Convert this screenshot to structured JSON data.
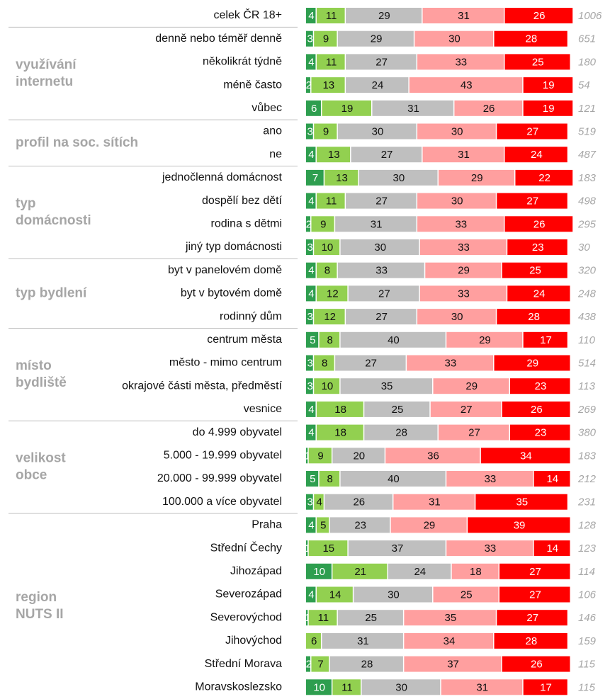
{
  "chart_data": {
    "type": "bar",
    "orientation": "horizontal",
    "stacked": true,
    "groups": [
      {
        "label": [],
        "categories": [
          "celek ČR 18+"
        ]
      },
      {
        "label": [
          "využívání",
          "internetu"
        ],
        "categories": [
          "denně nebo téměř denně",
          "několikrát týdně",
          "méně často",
          "vůbec"
        ]
      },
      {
        "label": [
          "profil na soc. sítích"
        ],
        "categories": [
          "ano",
          "ne"
        ]
      },
      {
        "label": [
          "typ",
          "domácnosti"
        ],
        "categories": [
          "jednočlenná domácnost",
          "dospělí bez dětí",
          "rodina s dětmi",
          "jiný typ domácnosti"
        ]
      },
      {
        "label": [
          "typ bydlení"
        ],
        "categories": [
          "byt v panelovém domě",
          "byt v bytovém domě",
          "rodinný dům"
        ]
      },
      {
        "label": [
          "místo",
          "bydliště"
        ],
        "categories": [
          "centrum města",
          "město - mimo centrum",
          "okrajové části města, předměstí",
          "vesnice"
        ]
      },
      {
        "label": [
          "velikost",
          "obce"
        ],
        "categories": [
          "do 4.999 obyvatel",
          "5.000 - 19.999 obyvatel",
          "20.000 - 99.999 obyvatel",
          "100.000 a více obyvatel"
        ]
      },
      {
        "label": [
          "region",
          "NUTS II"
        ],
        "categories": [
          "Praha",
          "Střední Čechy",
          "Jihozápad",
          "Severozápad",
          "Severovýchod",
          "Jihovýchod",
          "Střední Morava",
          "Moravskoslezsko"
        ]
      }
    ],
    "series": [
      {
        "color": "#2e9e4f",
        "values": [
          4,
          3,
          4,
          2,
          6,
          3,
          4,
          7,
          4,
          2,
          3,
          4,
          4,
          3,
          5,
          3,
          3,
          4,
          4,
          1,
          5,
          3,
          4,
          1,
          10,
          4,
          1,
          0,
          2,
          10
        ]
      },
      {
        "color": "#92d050",
        "values": [
          11,
          9,
          11,
          13,
          19,
          9,
          13,
          13,
          11,
          9,
          10,
          8,
          12,
          12,
          8,
          8,
          10,
          18,
          18,
          9,
          8,
          4,
          5,
          15,
          21,
          14,
          11,
          6,
          7,
          11
        ]
      },
      {
        "color": "#bfbfbf",
        "values": [
          29,
          29,
          27,
          24,
          31,
          30,
          27,
          30,
          27,
          31,
          30,
          33,
          27,
          27,
          40,
          27,
          35,
          25,
          28,
          20,
          40,
          26,
          23,
          37,
          24,
          30,
          25,
          31,
          28,
          30
        ]
      },
      {
        "color": "#ff9f9f",
        "values": [
          31,
          30,
          33,
          43,
          26,
          30,
          31,
          29,
          30,
          33,
          33,
          29,
          33,
          30,
          29,
          33,
          29,
          27,
          27,
          36,
          33,
          31,
          29,
          33,
          18,
          25,
          35,
          34,
          37,
          31
        ]
      },
      {
        "color": "#ff0000",
        "values": [
          26,
          28,
          25,
          19,
          19,
          27,
          24,
          22,
          27,
          26,
          23,
          25,
          24,
          28,
          17,
          29,
          23,
          26,
          23,
          34,
          14,
          35,
          39,
          14,
          27,
          27,
          27,
          28,
          26,
          17
        ]
      }
    ],
    "counts": [
      1006,
      651,
      180,
      54,
      121,
      519,
      487,
      183,
      498,
      295,
      30,
      320,
      248,
      438,
      110,
      514,
      113,
      269,
      380,
      183,
      212,
      231,
      128,
      123,
      114,
      106,
      146,
      159,
      115,
      115
    ],
    "xlim": [
      0,
      100
    ]
  }
}
